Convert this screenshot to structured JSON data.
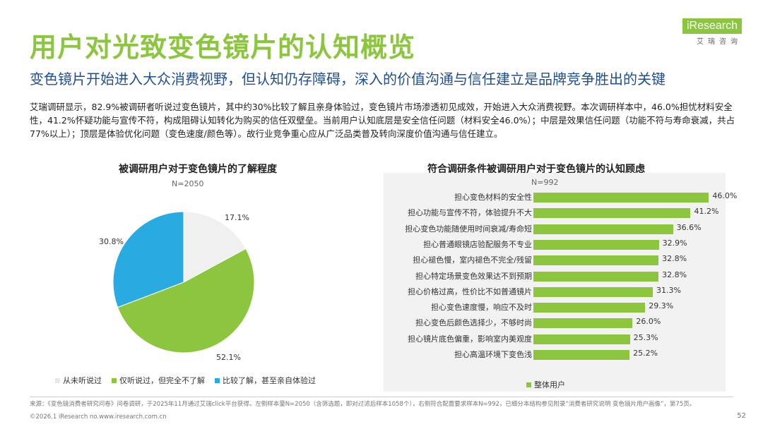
{
  "header": {
    "title": "用户对光致变色镜片的认知概览",
    "subtitle": "变色镜片开始进入大众消费视野，但认知仍存障碍，深入的价值沟通与信任建立是品牌竞争胜出的关键",
    "body": "艾瑞调研显示，82.9%被调研者听说过变色镜片，其中约30%比较了解且亲身体验过，变色镜片市场渗透初见成效，开始进入大众消费视野。本次调研样本中，46.0%担忧材料安全性，41.2%怀疑功能与宣传不符，构成阻碍认知转化为购买的信任双壁垒。当前用户认知底层是安全信任问题（材料安全46.0%）；中层是效果信任问题（功能不符与寿命衰减，共占77%以上）；顶层是体验优化问题（变色速度/颜色等）。故行业竞争重心应从广泛品类普及转向深度价值沟通与信任建立。"
  },
  "logo": {
    "main": "iResearch",
    "sub": "艾瑞咨询"
  },
  "colors": {
    "accent_green": "#8cc63f",
    "light_gray": "#f0f0f0",
    "blue": "#29abe2",
    "navy": "#1f4e96"
  },
  "chart_data": [
    {
      "type": "pie",
      "title": "被调研用户对于变色镜片的了解程度",
      "note": "N=2050",
      "categories": [
        "从未听说过",
        "仅听说过，但完全不了解",
        "比较了解，甚至亲自体验过"
      ],
      "values": [
        17.1,
        52.1,
        30.8
      ],
      "labels": [
        "17.1%",
        "52.1%",
        "30.8%"
      ],
      "colors": [
        "#f0f0f0",
        "#8cc63f",
        "#29abe2"
      ],
      "legend": "bottom"
    },
    {
      "type": "bar",
      "orientation": "horizontal",
      "title": "符合调研条件被调研用户对于变色镜片的认知顾虑",
      "note": "N=992",
      "categories": [
        "担心变色材料的安全性",
        "担心功能与宣传不符，体验提升不大",
        "担心变色功能随使用时间衰减/寿命短",
        "担心普通眼镜店验配服务不专业",
        "担心褪色慢，室内褪色不完全/残留",
        "担心特定场景变色效果达不到预期",
        "担心价格过高，性价比不如普通镜片",
        "担心变色速度慢，响应不及时",
        "担心变色后颜色选择少，不够时尚",
        "担心镜片底色偏重，影响室内美观度",
        "担心高温环境下变色浅"
      ],
      "series": [
        {
          "name": "整体用户",
          "values": [
            46.0,
            41.2,
            36.6,
            32.9,
            32.8,
            32.8,
            31.3,
            29.3,
            26.0,
            25.3,
            25.2
          ]
        }
      ],
      "labels": [
        "46.0%",
        "41.2%",
        "36.6%",
        "32.9%",
        "32.8%",
        "32.8%",
        "31.3%",
        "29.3%",
        "26.0%",
        "25.3%",
        "25.2%"
      ],
      "xlim": [
        0,
        50
      ],
      "legend": "bottom"
    }
  ],
  "footer": {
    "note": "来源：《变色镜消费者研究问卷》问卷调研，于2025年11月通过艾瑞click平台获得。左侧样本量N=2050（含筛选题，即对过滤后样本1058个），右侧符合配置要求样本N=992，已细分本结构参见附录“消费者研究说明 变色镜片用户画像”，第75页。",
    "copyright": "©2026.1 iResearch no.www.iresearch.com.cn",
    "page": "52"
  }
}
